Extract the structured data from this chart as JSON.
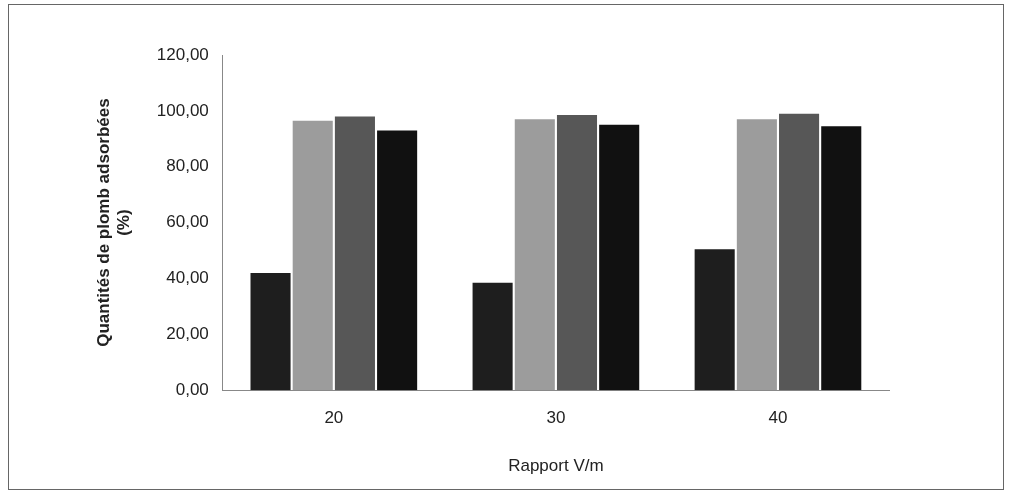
{
  "chart_data": {
    "type": "bar",
    "xlabel": "Rapport V/m",
    "ylabel": "Quantités de plomb adsorbées\n(%)",
    "categories": [
      "20",
      "30",
      "40"
    ],
    "series": [
      {
        "color": "#1e1e1e",
        "values": [
          42,
          38.5,
          50.5
        ]
      },
      {
        "color": "#9c9c9c",
        "values": [
          96.5,
          97,
          97
        ]
      },
      {
        "color": "#575757",
        "values": [
          98,
          98.5,
          99
        ]
      },
      {
        "color": "#111111",
        "values": [
          93,
          95,
          94.5
        ]
      }
    ],
    "ylim": [
      0,
      120
    ],
    "yticks": [
      {
        "value": 0,
        "label": "0,00"
      },
      {
        "value": 20,
        "label": "20,00"
      },
      {
        "value": 40,
        "label": "40,00"
      },
      {
        "value": 60,
        "label": "60,00"
      },
      {
        "value": 80,
        "label": "80,00"
      },
      {
        "value": 100,
        "label": "100,00"
      },
      {
        "value": 120,
        "label": "120,00"
      }
    ],
    "grid": false,
    "legend": false
  }
}
